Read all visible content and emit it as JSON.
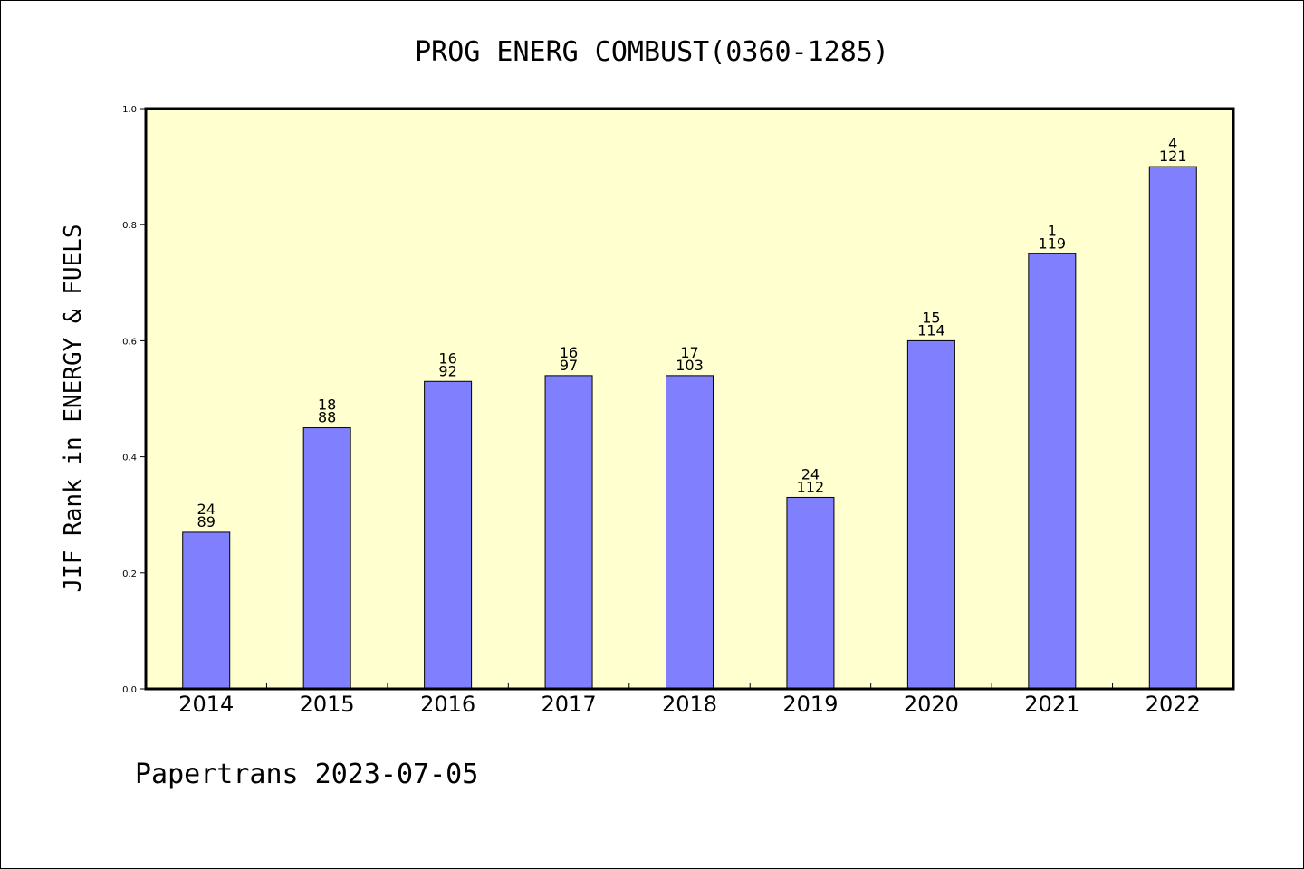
{
  "chart_data": {
    "type": "bar",
    "title": "PROG ENERG COMBUST(0360-1285)",
    "ylabel": "JIF Rank in ENERGY & FUELS",
    "xlabel": "",
    "ylim": [
      0,
      1.0
    ],
    "yticks": [
      "0.0",
      "0.2",
      "0.4",
      "0.6",
      "0.8",
      "1.0"
    ],
    "categories": [
      "2014",
      "2015",
      "2016",
      "2017",
      "2018",
      "2019",
      "2020",
      "2021",
      "2022"
    ],
    "values": [
      0.27,
      0.45,
      0.53,
      0.54,
      0.54,
      0.33,
      0.6,
      0.75,
      0.9
    ],
    "rank_labels": [
      "24",
      "18",
      "16",
      "16",
      "17",
      "24",
      "15",
      "1",
      "4"
    ],
    "total_labels": [
      "89",
      "88",
      "92",
      "97",
      "103",
      "112",
      "114",
      "119",
      "121"
    ],
    "grid": false,
    "legend": "none",
    "colors": {
      "plot_background": "#ffffd0",
      "bar_fill": "#8080ff",
      "bar_stroke": "#000000"
    }
  },
  "footer": {
    "text": "Papertrans 2023-07-05"
  }
}
